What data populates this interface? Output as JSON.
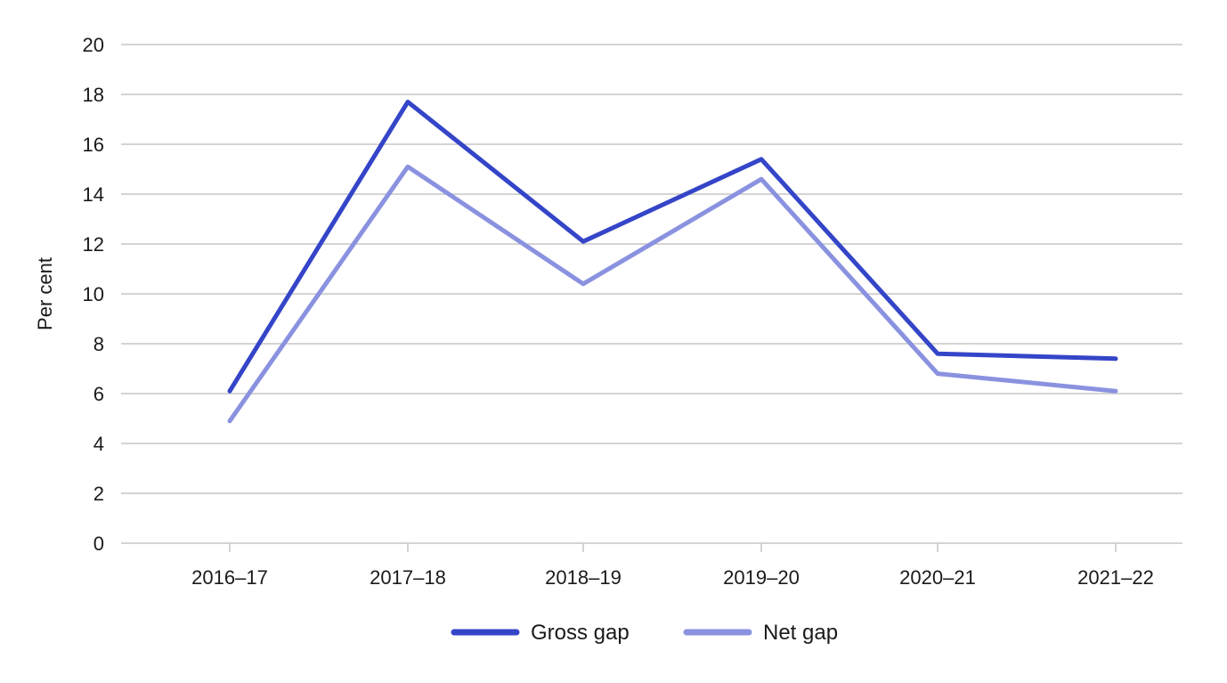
{
  "chart_data": {
    "type": "line",
    "title": "",
    "xlabel": "",
    "ylabel": "Per cent",
    "ylim": [
      0,
      20
    ],
    "yticks": [
      0,
      2,
      4,
      6,
      8,
      10,
      12,
      14,
      16,
      18,
      20
    ],
    "categories": [
      "2016–17",
      "2017–18",
      "2018–19",
      "2019–20",
      "2020–21",
      "2021–22"
    ],
    "series": [
      {
        "name": "Gross gap",
        "color": "#3545c8",
        "values": [
          6.1,
          17.7,
          12.1,
          15.4,
          7.6,
          7.4
        ]
      },
      {
        "name": "Net gap",
        "color": "#8a92e0",
        "values": [
          4.9,
          15.1,
          10.4,
          14.6,
          6.8,
          6.1
        ]
      }
    ],
    "grid": true,
    "legend": "bottom-center"
  }
}
